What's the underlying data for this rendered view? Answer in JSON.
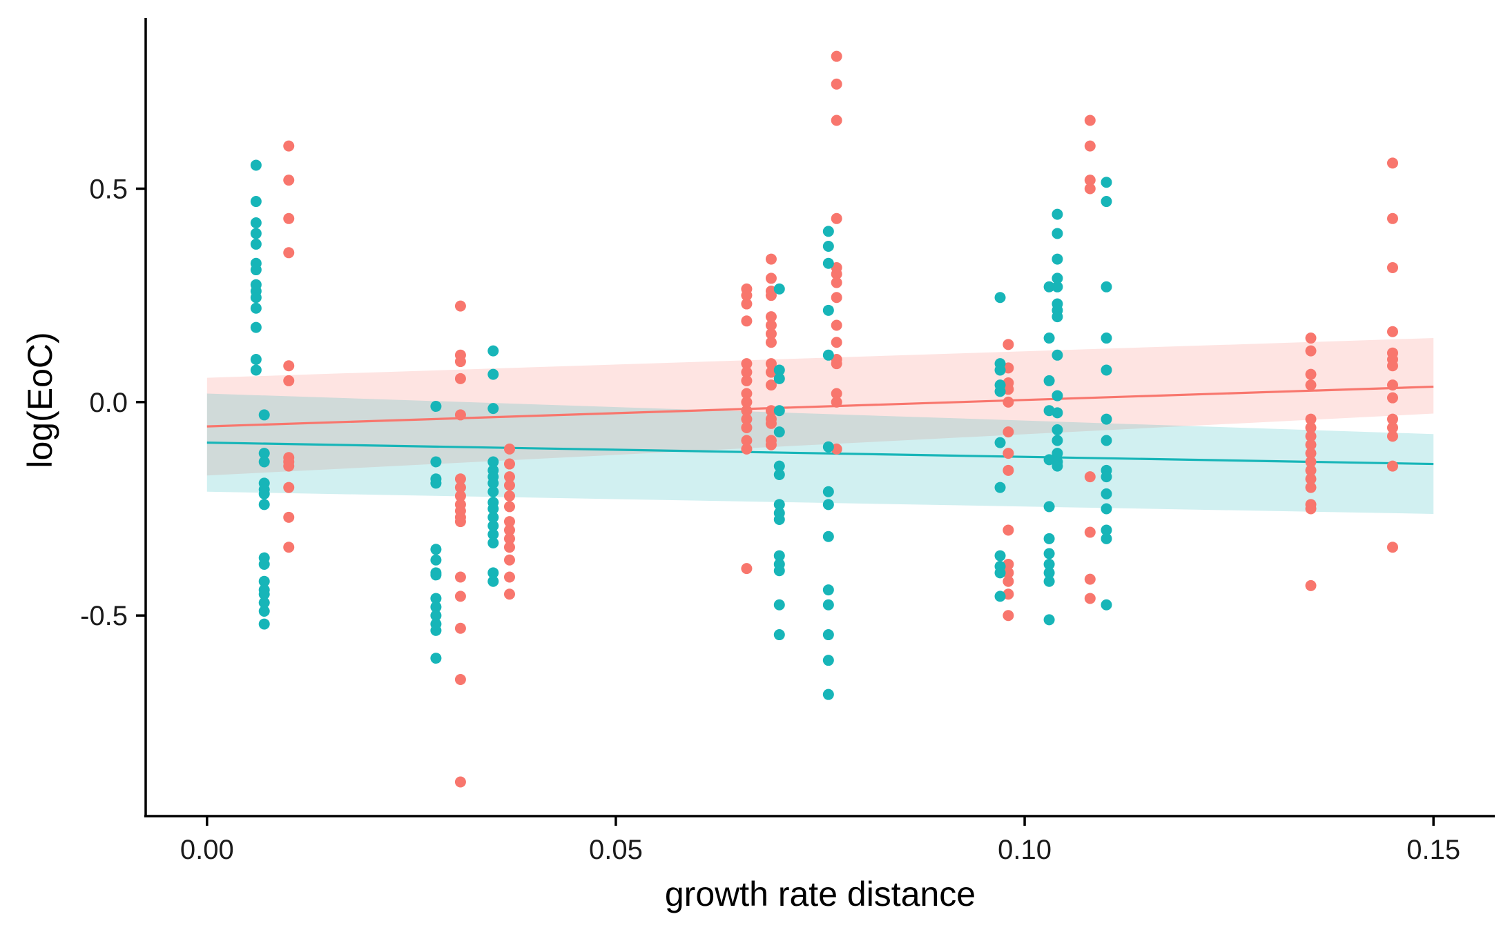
{
  "chart_data": {
    "type": "scatter",
    "title": "",
    "xlabel": "growth rate distance",
    "ylabel": "log(EoC)",
    "xlim": [
      -0.0075,
      0.1575
    ],
    "ylim": [
      -0.97,
      0.9
    ],
    "xticks": [
      0.0,
      0.05,
      0.1,
      0.15
    ],
    "xtick_labels": [
      "0.00",
      "0.05",
      "0.10",
      "0.15"
    ],
    "yticks": [
      0.5,
      0.0,
      -0.5
    ],
    "ytick_labels": [
      "0.5",
      "0.0",
      "-0.5"
    ],
    "grid": false,
    "legend": "none",
    "series": [
      {
        "color": "#F8766D",
        "band_color": "#F8766D",
        "trend": {
          "x": [
            0.0,
            0.15
          ],
          "y": [
            -0.057,
            0.036
          ]
        },
        "ci_band": {
          "x": [
            0.0,
            0.15
          ],
          "upper": [
            0.057,
            0.15
          ],
          "lower": [
            -0.172,
            -0.027
          ]
        },
        "points": [
          [
            0.01,
            0.6
          ],
          [
            0.01,
            0.52
          ],
          [
            0.01,
            0.43
          ],
          [
            0.01,
            0.35
          ],
          [
            0.01,
            0.085
          ],
          [
            0.01,
            0.05
          ],
          [
            0.01,
            -0.13
          ],
          [
            0.01,
            -0.14
          ],
          [
            0.01,
            -0.15
          ],
          [
            0.01,
            -0.2
          ],
          [
            0.01,
            -0.27
          ],
          [
            0.01,
            -0.34
          ],
          [
            0.031,
            0.225
          ],
          [
            0.031,
            0.11
          ],
          [
            0.031,
            0.095
          ],
          [
            0.031,
            0.055
          ],
          [
            0.031,
            -0.03
          ],
          [
            0.031,
            -0.18
          ],
          [
            0.031,
            -0.2
          ],
          [
            0.031,
            -0.22
          ],
          [
            0.031,
            -0.24
          ],
          [
            0.031,
            -0.255
          ],
          [
            0.031,
            -0.27
          ],
          [
            0.031,
            -0.28
          ],
          [
            0.031,
            -0.41
          ],
          [
            0.031,
            -0.455
          ],
          [
            0.031,
            -0.53
          ],
          [
            0.031,
            -0.65
          ],
          [
            0.031,
            -0.89
          ],
          [
            0.037,
            -0.11
          ],
          [
            0.037,
            -0.145
          ],
          [
            0.037,
            -0.175
          ],
          [
            0.037,
            -0.195
          ],
          [
            0.037,
            -0.22
          ],
          [
            0.037,
            -0.245
          ],
          [
            0.037,
            -0.28
          ],
          [
            0.037,
            -0.3
          ],
          [
            0.037,
            -0.32
          ],
          [
            0.037,
            -0.34
          ],
          [
            0.037,
            -0.37
          ],
          [
            0.037,
            -0.41
          ],
          [
            0.037,
            -0.45
          ],
          [
            0.066,
            0.265
          ],
          [
            0.066,
            0.25
          ],
          [
            0.066,
            0.23
          ],
          [
            0.066,
            0.19
          ],
          [
            0.066,
            0.09
          ],
          [
            0.066,
            0.07
          ],
          [
            0.066,
            0.05
          ],
          [
            0.066,
            0.02
          ],
          [
            0.066,
            0.0
          ],
          [
            0.066,
            -0.02
          ],
          [
            0.066,
            -0.04
          ],
          [
            0.066,
            -0.06
          ],
          [
            0.066,
            -0.09
          ],
          [
            0.066,
            -0.11
          ],
          [
            0.066,
            -0.39
          ],
          [
            0.069,
            0.335
          ],
          [
            0.069,
            0.29
          ],
          [
            0.069,
            0.26
          ],
          [
            0.069,
            0.25
          ],
          [
            0.069,
            0.2
          ],
          [
            0.069,
            0.18
          ],
          [
            0.069,
            0.16
          ],
          [
            0.069,
            0.14
          ],
          [
            0.069,
            0.09
          ],
          [
            0.069,
            0.07
          ],
          [
            0.069,
            0.04
          ],
          [
            0.069,
            -0.02
          ],
          [
            0.069,
            -0.04
          ],
          [
            0.069,
            -0.05
          ],
          [
            0.069,
            -0.09
          ],
          [
            0.069,
            -0.1
          ],
          [
            0.077,
            0.81
          ],
          [
            0.077,
            0.745
          ],
          [
            0.077,
            0.66
          ],
          [
            0.077,
            0.43
          ],
          [
            0.077,
            0.315
          ],
          [
            0.077,
            0.3
          ],
          [
            0.077,
            0.28
          ],
          [
            0.077,
            0.245
          ],
          [
            0.077,
            0.18
          ],
          [
            0.077,
            0.14
          ],
          [
            0.077,
            0.1
          ],
          [
            0.077,
            0.09
          ],
          [
            0.077,
            0.02
          ],
          [
            0.077,
            0.0
          ],
          [
            0.077,
            -0.11
          ],
          [
            0.098,
            0.135
          ],
          [
            0.098,
            0.08
          ],
          [
            0.098,
            0.045
          ],
          [
            0.098,
            0.03
          ],
          [
            0.098,
            0.0
          ],
          [
            0.098,
            -0.07
          ],
          [
            0.098,
            -0.12
          ],
          [
            0.098,
            -0.16
          ],
          [
            0.098,
            -0.3
          ],
          [
            0.098,
            -0.38
          ],
          [
            0.098,
            -0.4
          ],
          [
            0.098,
            -0.42
          ],
          [
            0.098,
            -0.45
          ],
          [
            0.098,
            -0.5
          ],
          [
            0.108,
            0.66
          ],
          [
            0.108,
            0.6
          ],
          [
            0.108,
            0.52
          ],
          [
            0.108,
            0.5
          ],
          [
            0.108,
            -0.175
          ],
          [
            0.108,
            -0.305
          ],
          [
            0.108,
            -0.415
          ],
          [
            0.108,
            -0.46
          ],
          [
            0.135,
            0.15
          ],
          [
            0.135,
            0.12
          ],
          [
            0.135,
            0.065
          ],
          [
            0.135,
            0.04
          ],
          [
            0.135,
            -0.04
          ],
          [
            0.135,
            -0.06
          ],
          [
            0.135,
            -0.08
          ],
          [
            0.135,
            -0.1
          ],
          [
            0.135,
            -0.12
          ],
          [
            0.135,
            -0.14
          ],
          [
            0.135,
            -0.16
          ],
          [
            0.135,
            -0.18
          ],
          [
            0.135,
            -0.2
          ],
          [
            0.135,
            -0.24
          ],
          [
            0.135,
            -0.25
          ],
          [
            0.135,
            -0.43
          ],
          [
            0.145,
            0.56
          ],
          [
            0.145,
            0.43
          ],
          [
            0.145,
            0.315
          ],
          [
            0.145,
            0.165
          ],
          [
            0.145,
            0.115
          ],
          [
            0.145,
            0.1
          ],
          [
            0.145,
            0.085
          ],
          [
            0.145,
            0.04
          ],
          [
            0.145,
            0.01
          ],
          [
            0.145,
            -0.04
          ],
          [
            0.145,
            -0.06
          ],
          [
            0.145,
            -0.08
          ],
          [
            0.145,
            -0.15
          ],
          [
            0.145,
            -0.34
          ]
        ]
      },
      {
        "color": "#17B5B8",
        "band_color": "#17B5B8",
        "trend": {
          "x": [
            0.0,
            0.15
          ],
          "y": [
            -0.095,
            -0.145
          ]
        },
        "ci_band": {
          "x": [
            0.0,
            0.15
          ],
          "upper": [
            0.02,
            -0.075
          ],
          "lower": [
            -0.21,
            -0.262
          ]
        },
        "points": [
          [
            0.006,
            0.555
          ],
          [
            0.006,
            0.47
          ],
          [
            0.006,
            0.42
          ],
          [
            0.006,
            0.395
          ],
          [
            0.006,
            0.37
          ],
          [
            0.006,
            0.325
          ],
          [
            0.006,
            0.31
          ],
          [
            0.006,
            0.275
          ],
          [
            0.006,
            0.26
          ],
          [
            0.006,
            0.245
          ],
          [
            0.006,
            0.22
          ],
          [
            0.006,
            0.175
          ],
          [
            0.006,
            0.1
          ],
          [
            0.006,
            0.075
          ],
          [
            0.007,
            -0.03
          ],
          [
            0.007,
            -0.12
          ],
          [
            0.007,
            -0.14
          ],
          [
            0.007,
            -0.19
          ],
          [
            0.007,
            -0.205
          ],
          [
            0.007,
            -0.215
          ],
          [
            0.007,
            -0.24
          ],
          [
            0.007,
            -0.365
          ],
          [
            0.007,
            -0.38
          ],
          [
            0.007,
            -0.42
          ],
          [
            0.007,
            -0.44
          ],
          [
            0.007,
            -0.45
          ],
          [
            0.007,
            -0.47
          ],
          [
            0.007,
            -0.49
          ],
          [
            0.007,
            -0.52
          ],
          [
            0.028,
            -0.01
          ],
          [
            0.028,
            -0.14
          ],
          [
            0.028,
            -0.18
          ],
          [
            0.028,
            -0.19
          ],
          [
            0.028,
            -0.345
          ],
          [
            0.028,
            -0.37
          ],
          [
            0.028,
            -0.4
          ],
          [
            0.028,
            -0.405
          ],
          [
            0.028,
            -0.46
          ],
          [
            0.028,
            -0.48
          ],
          [
            0.028,
            -0.5
          ],
          [
            0.028,
            -0.52
          ],
          [
            0.028,
            -0.535
          ],
          [
            0.028,
            -0.6
          ],
          [
            0.035,
            0.12
          ],
          [
            0.035,
            0.065
          ],
          [
            0.035,
            -0.015
          ],
          [
            0.035,
            -0.14
          ],
          [
            0.035,
            -0.16
          ],
          [
            0.035,
            -0.175
          ],
          [
            0.035,
            -0.19
          ],
          [
            0.035,
            -0.21
          ],
          [
            0.035,
            -0.235
          ],
          [
            0.035,
            -0.25
          ],
          [
            0.035,
            -0.27
          ],
          [
            0.035,
            -0.29
          ],
          [
            0.035,
            -0.31
          ],
          [
            0.035,
            -0.33
          ],
          [
            0.035,
            -0.4
          ],
          [
            0.035,
            -0.42
          ],
          [
            0.07,
            0.265
          ],
          [
            0.07,
            0.075
          ],
          [
            0.07,
            0.055
          ],
          [
            0.07,
            -0.02
          ],
          [
            0.07,
            -0.07
          ],
          [
            0.07,
            -0.15
          ],
          [
            0.07,
            -0.17
          ],
          [
            0.07,
            -0.24
          ],
          [
            0.07,
            -0.26
          ],
          [
            0.07,
            -0.275
          ],
          [
            0.07,
            -0.36
          ],
          [
            0.07,
            -0.38
          ],
          [
            0.07,
            -0.395
          ],
          [
            0.07,
            -0.475
          ],
          [
            0.07,
            -0.545
          ],
          [
            0.076,
            0.4
          ],
          [
            0.076,
            0.365
          ],
          [
            0.076,
            0.325
          ],
          [
            0.076,
            0.215
          ],
          [
            0.076,
            0.11
          ],
          [
            0.076,
            -0.105
          ],
          [
            0.076,
            -0.21
          ],
          [
            0.076,
            -0.24
          ],
          [
            0.076,
            -0.315
          ],
          [
            0.076,
            -0.44
          ],
          [
            0.076,
            -0.475
          ],
          [
            0.076,
            -0.545
          ],
          [
            0.076,
            -0.605
          ],
          [
            0.076,
            -0.685
          ],
          [
            0.097,
            0.245
          ],
          [
            0.097,
            0.09
          ],
          [
            0.097,
            0.075
          ],
          [
            0.097,
            0.04
          ],
          [
            0.097,
            0.025
          ],
          [
            0.097,
            -0.095
          ],
          [
            0.097,
            -0.2
          ],
          [
            0.097,
            -0.36
          ],
          [
            0.097,
            -0.385
          ],
          [
            0.097,
            -0.4
          ],
          [
            0.097,
            -0.455
          ],
          [
            0.103,
            0.27
          ],
          [
            0.103,
            0.15
          ],
          [
            0.103,
            0.05
          ],
          [
            0.103,
            -0.02
          ],
          [
            0.103,
            -0.135
          ],
          [
            0.103,
            -0.245
          ],
          [
            0.103,
            -0.32
          ],
          [
            0.103,
            -0.355
          ],
          [
            0.103,
            -0.38
          ],
          [
            0.103,
            -0.4
          ],
          [
            0.103,
            -0.42
          ],
          [
            0.103,
            -0.51
          ],
          [
            0.104,
            0.44
          ],
          [
            0.104,
            0.395
          ],
          [
            0.104,
            0.335
          ],
          [
            0.104,
            0.29
          ],
          [
            0.104,
            0.27
          ],
          [
            0.104,
            0.23
          ],
          [
            0.104,
            0.215
          ],
          [
            0.104,
            0.2
          ],
          [
            0.104,
            0.11
          ],
          [
            0.104,
            0.015
          ],
          [
            0.104,
            -0.025
          ],
          [
            0.104,
            -0.065
          ],
          [
            0.104,
            -0.09
          ],
          [
            0.104,
            -0.12
          ],
          [
            0.104,
            -0.14
          ],
          [
            0.104,
            -0.15
          ],
          [
            0.11,
            0.515
          ],
          [
            0.11,
            0.47
          ],
          [
            0.11,
            0.27
          ],
          [
            0.11,
            0.15
          ],
          [
            0.11,
            0.075
          ],
          [
            0.11,
            -0.04
          ],
          [
            0.11,
            -0.09
          ],
          [
            0.11,
            -0.16
          ],
          [
            0.11,
            -0.175
          ],
          [
            0.11,
            -0.215
          ],
          [
            0.11,
            -0.25
          ],
          [
            0.11,
            -0.3
          ],
          [
            0.11,
            -0.32
          ],
          [
            0.11,
            -0.475
          ]
        ]
      }
    ]
  }
}
